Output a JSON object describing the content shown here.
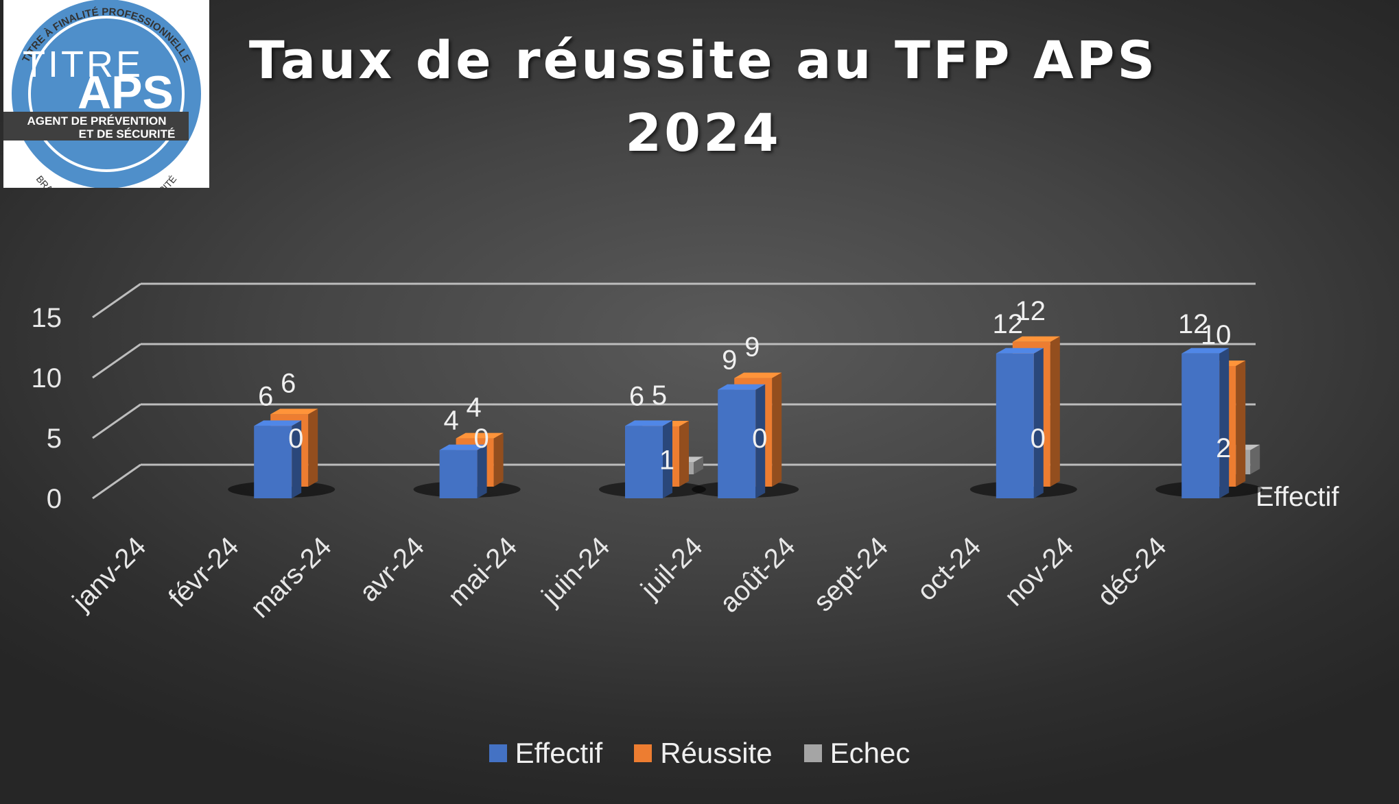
{
  "title": {
    "line1": "Taux de réussite au TFP APS",
    "line2": "2024"
  },
  "logo": {
    "arc_top": "TITRE À FINALITÉ PROFESSIONNELLE",
    "word_titre": "TITRE",
    "word_aps": "APS",
    "band_line1": "AGENT DE PRÉVENTION",
    "band_line2": "ET DE SÉCURITÉ",
    "arc_bottom": "BRANCHE PRÉVENTION-SÉCURITÉ",
    "colors": {
      "circle": "#4f8fca",
      "band": "#3f3f3f"
    }
  },
  "colors": {
    "effectif": "#4472c4",
    "reussite": "#ed7d31",
    "echec": "#a5a5a5"
  },
  "chart_data": {
    "type": "bar",
    "view": "3d-clustered-column",
    "categories": [
      "janv-24",
      "févr-24",
      "mars-24",
      "avr-24",
      "mai-24",
      "juin-24",
      "juil-24",
      "août-24",
      "sept-24",
      "oct-24",
      "nov-24",
      "déc-24"
    ],
    "series": [
      {
        "name": "Effectif",
        "values": [
          null,
          6,
          null,
          4,
          null,
          6,
          9,
          null,
          null,
          12,
          null,
          12
        ]
      },
      {
        "name": "Réussite",
        "values": [
          null,
          6,
          null,
          4,
          null,
          5,
          9,
          null,
          null,
          12,
          null,
          10
        ]
      },
      {
        "name": "Echec",
        "values": [
          null,
          0,
          null,
          0,
          null,
          1,
          0,
          null,
          null,
          0,
          null,
          2
        ]
      }
    ],
    "y_ticks": [
      "0",
      "5",
      "10",
      "15"
    ],
    "ylim": [
      0,
      15
    ],
    "depth_axis_label": "Effectif",
    "grid": true,
    "legend_position": "bottom"
  }
}
